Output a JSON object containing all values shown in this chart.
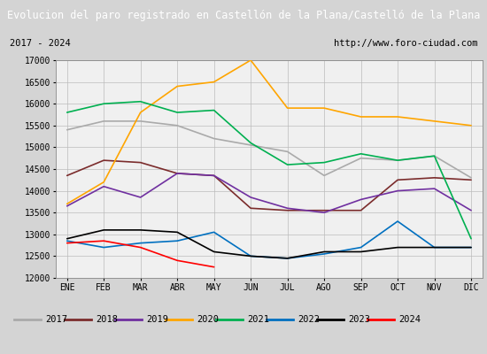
{
  "title": "Evolucion del paro registrado en Castellón de la Plana/Castelló de la Plana",
  "subtitle_left": "2017 - 2024",
  "subtitle_right": "http://www.foro-ciudad.com",
  "title_bg": "#4472c4",
  "title_color": "white",
  "months": [
    "ENE",
    "FEB",
    "MAR",
    "ABR",
    "MAY",
    "JUN",
    "JUL",
    "AGO",
    "SEP",
    "OCT",
    "NOV",
    "DIC"
  ],
  "ylim": [
    12000,
    17000
  ],
  "yticks": [
    12000,
    12500,
    13000,
    13500,
    14000,
    14500,
    15000,
    15500,
    16000,
    16500,
    17000
  ],
  "series": {
    "2017": {
      "color": "#aaaaaa",
      "lw": 1.2,
      "data": [
        15400,
        15600,
        15600,
        15500,
        15200,
        15050,
        14900,
        14350,
        14750,
        14700,
        14800,
        14300
      ]
    },
    "2018": {
      "color": "#7b2c2c",
      "lw": 1.2,
      "data": [
        14350,
        14700,
        14650,
        14400,
        14350,
        13600,
        13550,
        13550,
        13550,
        14250,
        14300,
        14250
      ]
    },
    "2019": {
      "color": "#7030a0",
      "lw": 1.2,
      "data": [
        13650,
        14100,
        13850,
        14400,
        14350,
        13850,
        13600,
        13500,
        13800,
        14000,
        14050,
        13550
      ]
    },
    "2020": {
      "color": "#ffa500",
      "lw": 1.2,
      "data": [
        13700,
        14200,
        15800,
        16400,
        16500,
        17000,
        15900,
        15900,
        15700,
        15700,
        15600,
        15500
      ]
    },
    "2021": {
      "color": "#00b050",
      "lw": 1.2,
      "data": [
        15800,
        16000,
        16050,
        15800,
        15850,
        15100,
        14600,
        14650,
        14850,
        14700,
        14800,
        12900
      ]
    },
    "2022": {
      "color": "#0070c0",
      "lw": 1.2,
      "data": [
        12850,
        12700,
        12800,
        12850,
        13050,
        12500,
        12450,
        12550,
        12700,
        13300,
        12700,
        12700
      ]
    },
    "2023": {
      "color": "#000000",
      "lw": 1.2,
      "data": [
        12900,
        13100,
        13100,
        13050,
        12600,
        12500,
        12450,
        12600,
        12600,
        12700,
        12700,
        12700
      ]
    },
    "2024": {
      "color": "#ff0000",
      "lw": 1.2,
      "data": [
        12800,
        12850,
        12700,
        12400,
        12250,
        null,
        null,
        null,
        null,
        null,
        null,
        null
      ]
    }
  }
}
